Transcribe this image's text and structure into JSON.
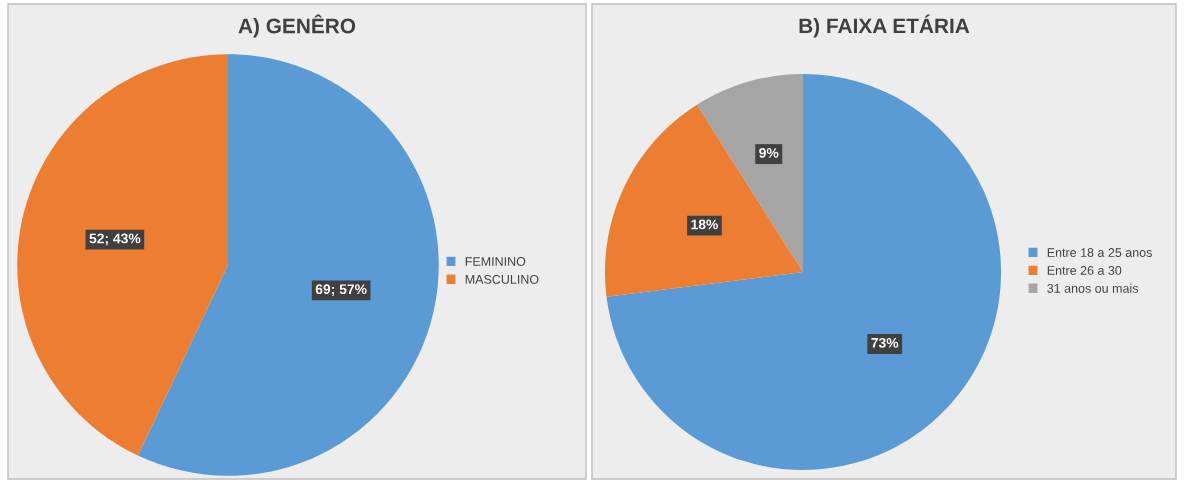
{
  "chart_data": [
    {
      "type": "pie",
      "title": "A) GENÊRO",
      "categories": [
        "FEMININO",
        "MASCULINO"
      ],
      "values": [
        69,
        52
      ],
      "colors": [
        "#5b9bd5",
        "#ed7d31"
      ],
      "value_labels": [
        "69; 57%",
        "52; 43%"
      ],
      "legend": "right"
    },
    {
      "type": "pie",
      "title": "B) FAIXA ETÁRIA",
      "categories": [
        "Entre 18 a 25 anos",
        "Entre 26 a 30",
        "31 anos ou mais"
      ],
      "values": [
        73,
        18,
        9
      ],
      "colors": [
        "#5b9bd5",
        "#ed7d31",
        "#a5a5a5"
      ],
      "value_labels": [
        "73%",
        "18%",
        "9%"
      ],
      "legend": "right"
    }
  ]
}
